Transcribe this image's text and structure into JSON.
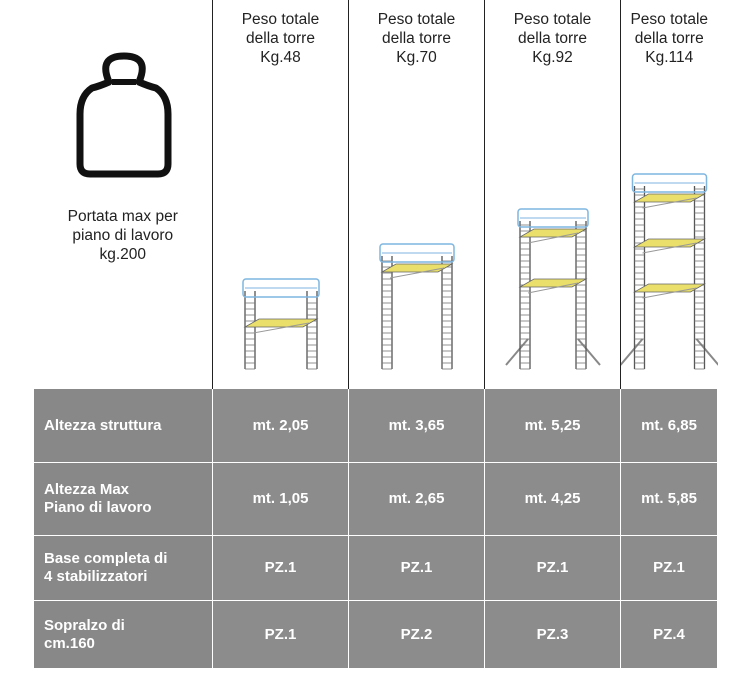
{
  "header": {
    "caption": [
      "Portata max per",
      "piano di lavoro",
      "kg.200"
    ],
    "columns": [
      [
        "Peso totale",
        "della torre",
        "Kg.48"
      ],
      [
        "Peso totale",
        "della torre",
        "Kg.70"
      ],
      [
        "Peso totale",
        "della torre",
        "Kg.92"
      ],
      [
        "Peso totale",
        "della torre",
        "Kg.114"
      ]
    ]
  },
  "rows": [
    {
      "label": [
        "Altezza struttura"
      ],
      "values": [
        "mt. 2,05",
        "mt. 3,65",
        "mt. 5,25",
        "mt. 6,85"
      ]
    },
    {
      "label": [
        "Altezza Max",
        "Piano di lavoro"
      ],
      "values": [
        "mt. 1,05",
        "mt. 2,65",
        "mt. 4,25",
        "mt. 5,85"
      ]
    },
    {
      "label": [
        "Base completa di",
        "4 stabilizzatori"
      ],
      "values": [
        "PZ.1",
        "PZ.1",
        "PZ.1",
        "PZ.1"
      ]
    },
    {
      "label": [
        "Sopralzo di",
        "cm.160"
      ],
      "values": [
        "PZ.1",
        "PZ.2",
        "PZ.3",
        "PZ.4"
      ]
    }
  ]
}
